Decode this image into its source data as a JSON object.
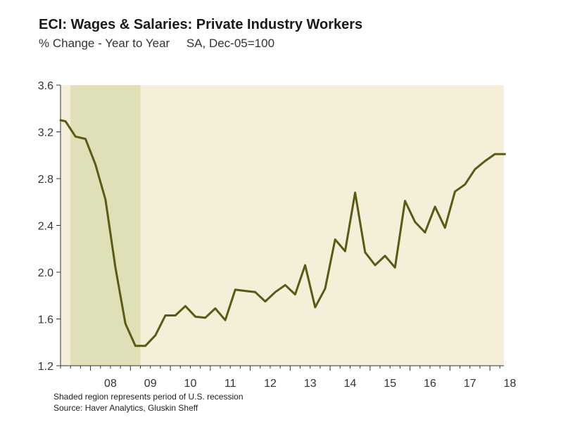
{
  "header": {
    "title": "ECI: Wages & Salaries: Private Industry Workers",
    "subtitle": "% Change - Year to Year     SA, Dec-05=100"
  },
  "footer": {
    "note": "Shaded region represents period of U.S. recession",
    "source": "Source: Haver Analytics, Gluskin Sheff"
  },
  "colors": {
    "line": "#5a5a14",
    "plot_background": "#f5efda",
    "recession_band": "#dfdfb8",
    "axis": "#333333"
  },
  "chart_data": {
    "type": "line",
    "title": "ECI: Wages & Salaries: Private Industry Workers",
    "subtitle": "% Change - Year to Year     SA, Dec-05=100",
    "xlabel": "",
    "ylabel": "",
    "ylim": [
      1.2,
      3.6
    ],
    "xlim": [
      2007.25,
      2018.35
    ],
    "y_ticks": [
      1.2,
      1.6,
      2.0,
      2.4,
      2.8,
      3.2,
      3.6
    ],
    "y_tick_labels": [
      "1.2",
      "1.6",
      "2.0",
      "2.4",
      "2.8",
      "3.2",
      "3.6"
    ],
    "x_ticks": [
      2008,
      2009,
      2010,
      2011,
      2012,
      2013,
      2014,
      2015,
      2016,
      2017,
      2018
    ],
    "x_tick_labels": [
      "08",
      "09",
      "10",
      "11",
      "12",
      "13",
      "14",
      "15",
      "16",
      "17",
      "18"
    ],
    "recession": {
      "start": 2007.5,
      "end": 2009.25,
      "label": "Shaded region represents period of U.S. recession"
    },
    "grid": false,
    "legend": "none",
    "series": [
      {
        "name": "ECI: Wages & Salaries: Private Industry Workers",
        "x": [
          2007.25,
          2007.375,
          2007.625,
          2007.875,
          2008.125,
          2008.375,
          2008.625,
          2008.875,
          2009.125,
          2009.375,
          2009.625,
          2009.875,
          2010.125,
          2010.375,
          2010.625,
          2010.875,
          2011.125,
          2011.375,
          2011.625,
          2011.875,
          2012.125,
          2012.375,
          2012.625,
          2012.875,
          2013.125,
          2013.375,
          2013.625,
          2013.875,
          2014.125,
          2014.375,
          2014.625,
          2014.875,
          2015.125,
          2015.375,
          2015.625,
          2015.875,
          2016.125,
          2016.375,
          2016.625,
          2016.875,
          2017.125,
          2017.375,
          2017.625,
          2017.875,
          2018.125,
          2018.375
        ],
        "values": [
          3.3,
          3.29,
          3.16,
          3.14,
          2.92,
          2.62,
          2.04,
          1.56,
          1.37,
          1.37,
          1.46,
          1.63,
          1.63,
          1.71,
          1.62,
          1.61,
          1.69,
          1.59,
          1.85,
          1.84,
          1.83,
          1.75,
          1.83,
          1.89,
          1.81,
          2.06,
          1.7,
          1.86,
          2.28,
          2.18,
          2.68,
          2.17,
          2.06,
          2.14,
          2.04,
          2.61,
          2.43,
          2.34,
          2.56,
          2.38,
          2.69,
          2.75,
          2.88,
          2.95,
          3.01,
          3.01
        ]
      }
    ]
  }
}
